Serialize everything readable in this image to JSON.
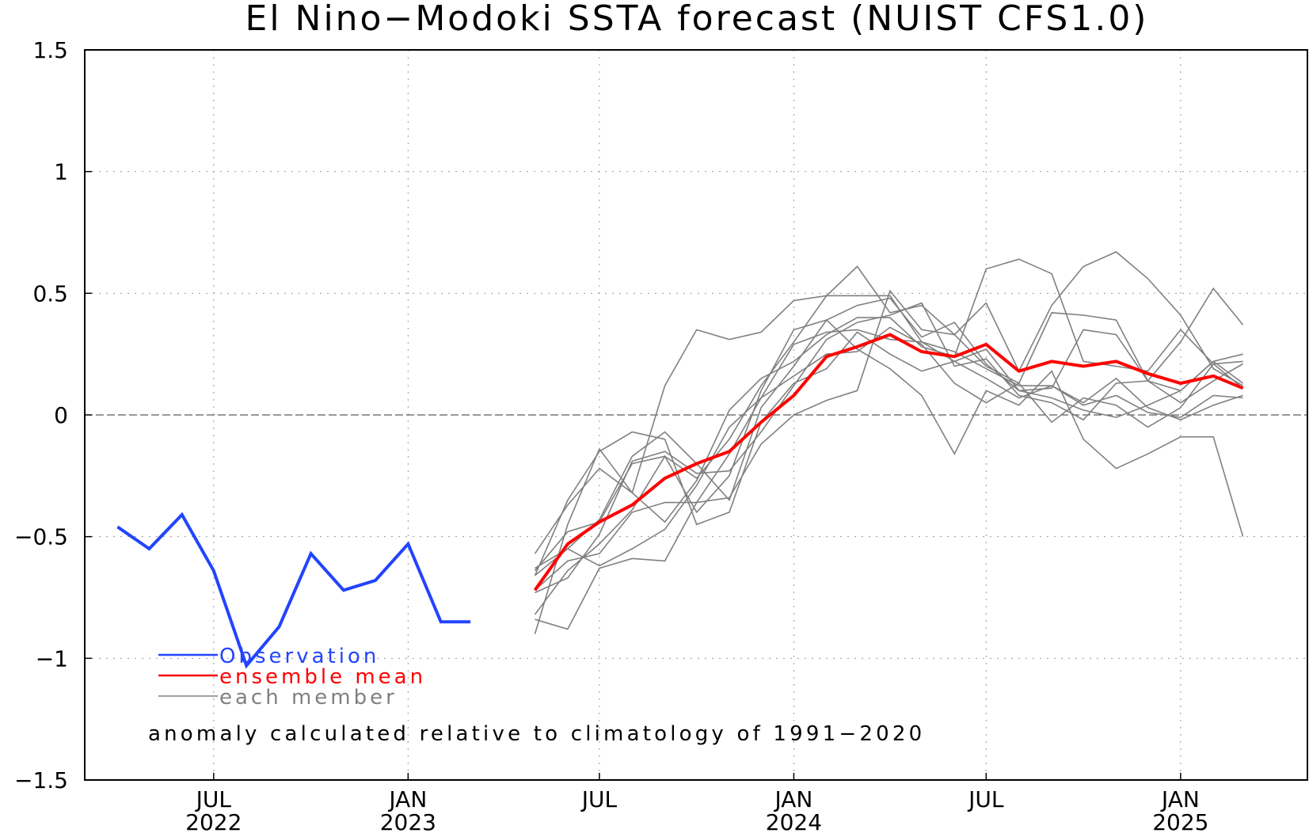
{
  "chart_data": {
    "type": "line",
    "title": "El Nino−Modoki SSTA forecast (NUIST CFS1.0)",
    "note": "anomaly calculated relative to climatology of 1991−2020",
    "ylim": [
      -1.5,
      1.5
    ],
    "y_ticks": [
      {
        "value": 1.5,
        "label": "1.5"
      },
      {
        "value": 1,
        "label": "1"
      },
      {
        "value": 0.5,
        "label": "0.5"
      },
      {
        "value": 0,
        "label": "0"
      },
      {
        "value": -0.5,
        "label": "−0.5"
      },
      {
        "value": -1,
        "label": "−1"
      },
      {
        "value": -1.5,
        "label": "−1.5"
      }
    ],
    "x_ticks": [
      {
        "date": "2022-07",
        "label": "JUL",
        "year": "2022"
      },
      {
        "date": "2023-01",
        "label": "JAN",
        "year": "2023"
      },
      {
        "date": "2023-07",
        "label": "JUL",
        "year": ""
      },
      {
        "date": "2024-01",
        "label": "JAN",
        "year": "2024"
      },
      {
        "date": "2024-07",
        "label": "JUL",
        "year": ""
      },
      {
        "date": "2025-01",
        "label": "JAN",
        "year": "2025"
      }
    ],
    "xlim": [
      "2022-03-15",
      "2025-05-15"
    ],
    "grid": true,
    "zero_line": true,
    "legend_position": "bottom-left",
    "observation": {
      "name": "Observation",
      "color": "#2244ff",
      "x": [
        "2022-04",
        "2022-05",
        "2022-06",
        "2022-07",
        "2022-08",
        "2022-09",
        "2022-10",
        "2022-11",
        "2022-12",
        "2023-01",
        "2023-02",
        "2023-03"
      ],
      "values": [
        -0.46,
        -0.55,
        -0.41,
        -0.64,
        -1.03,
        -0.87,
        -0.57,
        -0.72,
        -0.68,
        -0.53,
        -0.85,
        -0.85
      ]
    },
    "ensemble_mean": {
      "name": "ensemble mean",
      "color": "#ff0000",
      "x": [
        "2023-05",
        "2023-06",
        "2023-07",
        "2023-08",
        "2023-09",
        "2023-10",
        "2023-11",
        "2023-12",
        "2024-01",
        "2024-02",
        "2024-03",
        "2024-04",
        "2024-05",
        "2024-06",
        "2024-07",
        "2024-08",
        "2024-09",
        "2024-10",
        "2024-11",
        "2024-12",
        "2025-01",
        "2025-02",
        "2025-03"
      ],
      "values": [
        -0.72,
        -0.53,
        -0.44,
        -0.37,
        -0.26,
        -0.2,
        -0.15,
        -0.03,
        0.08,
        0.24,
        0.28,
        0.33,
        0.26,
        0.24,
        0.29,
        0.18,
        0.22,
        0.2,
        0.22,
        0.17,
        0.13,
        0.16,
        0.11
      ]
    },
    "members": {
      "name": "each member",
      "color": "#808080",
      "x": [
        "2023-05",
        "2023-06",
        "2023-07",
        "2023-08",
        "2023-09",
        "2023-10",
        "2023-11",
        "2023-12",
        "2024-01",
        "2024-02",
        "2024-03",
        "2024-04",
        "2024-05",
        "2024-06",
        "2024-07",
        "2024-08",
        "2024-09",
        "2024-10",
        "2024-11",
        "2024-12",
        "2025-01",
        "2025-02",
        "2025-03"
      ],
      "series": [
        [
          -0.9,
          -0.45,
          -0.14,
          -0.32,
          0.12,
          0.35,
          0.31,
          0.34,
          0.47,
          0.49,
          0.49,
          0.49,
          0.3,
          0.22,
          0.27,
          0.1,
          0.07,
          0.02,
          -0.01,
          0.04,
          0.1,
          0.22,
          0.25
        ],
        [
          -0.57,
          -0.37,
          -0.22,
          -0.32,
          -0.44,
          -0.27,
          0.02,
          0.15,
          0.22,
          0.33,
          0.4,
          0.4,
          0.28,
          0.24,
          0.6,
          0.64,
          0.58,
          0.22,
          0.2,
          0.18,
          0.35,
          0.21,
          0.22
        ],
        [
          -0.64,
          -0.48,
          -0.44,
          -0.2,
          -0.17,
          -0.26,
          -0.1,
          0.12,
          0.3,
          0.49,
          0.61,
          0.42,
          0.45,
          0.33,
          0.46,
          0.18,
          0.45,
          0.61,
          0.67,
          0.56,
          0.41,
          0.19,
          0.12
        ],
        [
          -0.66,
          -0.55,
          -0.43,
          -0.17,
          -0.07,
          -0.2,
          -0.35,
          0.03,
          0.2,
          0.39,
          0.45,
          0.48,
          0.32,
          0.38,
          0.21,
          0.1,
          0.11,
          0.35,
          0.33,
          0.14,
          0.3,
          0.52,
          0.37
        ],
        [
          -0.84,
          -0.88,
          -0.63,
          -0.59,
          -0.6,
          -0.36,
          -0.34,
          -0.12,
          0.0,
          0.06,
          0.1,
          0.51,
          0.35,
          0.33,
          0.2,
          0.13,
          0.42,
          0.41,
          0.39,
          0.14,
          0.05,
          0.14,
          0.21
        ],
        [
          -0.73,
          -0.67,
          -0.49,
          -0.19,
          -0.15,
          -0.24,
          -0.23,
          -0.07,
          0.12,
          0.31,
          0.38,
          0.41,
          0.46,
          0.2,
          0.23,
          0.08,
          0.05,
          -0.02,
          0.13,
          0.14,
          0.1,
          0.22,
          0.13
        ],
        [
          -0.72,
          -0.6,
          -0.57,
          -0.4,
          -0.36,
          -0.36,
          -0.16,
          0.07,
          0.16,
          0.25,
          0.26,
          0.36,
          0.29,
          0.13,
          0.05,
          0.13,
          -0.03,
          0.07,
          0.04,
          -0.05,
          0.03,
          0.21,
          0.11
        ],
        [
          -0.82,
          -0.64,
          -0.53,
          -0.39,
          -0.17,
          -0.4,
          -0.25,
          0.1,
          0.35,
          0.39,
          0.27,
          0.19,
          0.08,
          -0.16,
          0.1,
          0.04,
          0.18,
          -0.1,
          -0.22,
          -0.16,
          -0.09,
          -0.09,
          -0.5
        ],
        [
          -0.66,
          -0.35,
          -0.15,
          -0.07,
          -0.1,
          -0.45,
          -0.4,
          -0.03,
          0.13,
          0.19,
          0.34,
          0.25,
          0.18,
          0.22,
          0.15,
          0.07,
          0.12,
          0.04,
          0.08,
          0.01,
          -0.01,
          0.08,
          0.07
        ],
        [
          -0.63,
          -0.55,
          -0.62,
          -0.55,
          -0.47,
          -0.29,
          -0.05,
          0.07,
          0.29,
          0.34,
          0.35,
          0.31,
          0.3,
          0.26,
          0.19,
          0.12,
          0.12,
          0.05,
          0.15,
          0.03,
          -0.02,
          0.04,
          0.08
        ]
      ]
    }
  }
}
